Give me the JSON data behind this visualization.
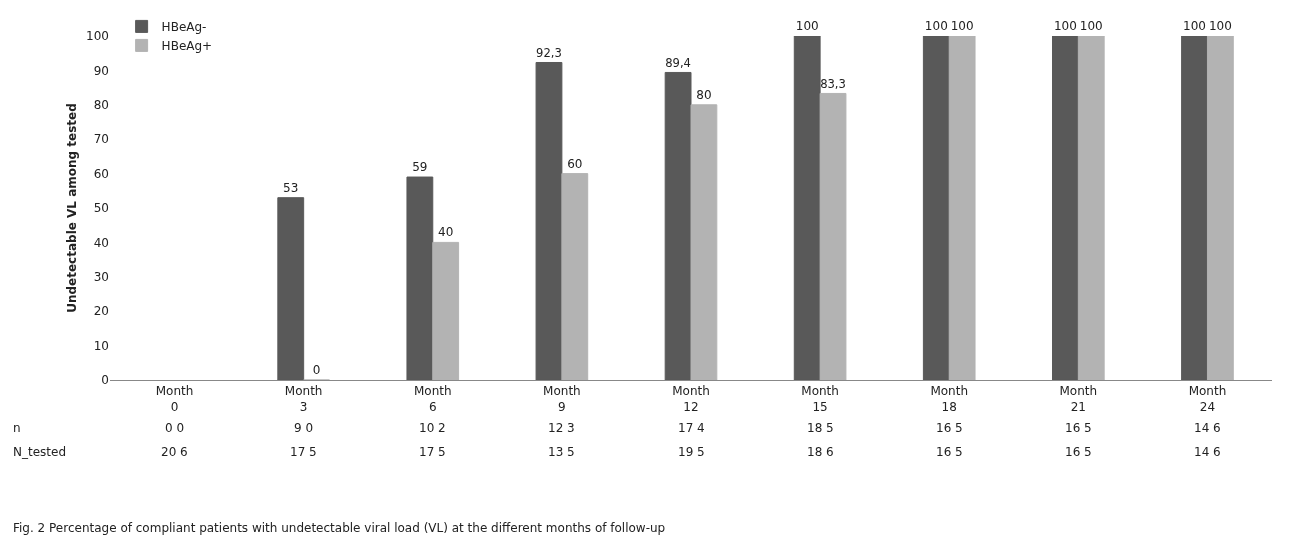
{
  "chart_data": {
    "type": "bar",
    "ylabel": "Undetectable VL among tested",
    "categories": [
      "Month\n0",
      "Month\n3",
      "Month\n6",
      "Month\n9",
      "Month\n12",
      "Month\n15",
      "Month\n18",
      "Month\n21",
      "Month\n24"
    ],
    "series": [
      {
        "name": "HBeAg-",
        "color": "#595959",
        "values": [
          null,
          53,
          59,
          92.3,
          89.4,
          100,
          100,
          100,
          100
        ],
        "value_labels": [
          null,
          "53",
          "59",
          "92,3",
          "89,4",
          "100",
          "100",
          "100",
          "100"
        ]
      },
      {
        "name": "HBeAg+",
        "color": "#b3b3b3",
        "values": [
          null,
          0,
          40,
          60,
          80,
          83.3,
          100,
          100,
          100
        ],
        "value_labels": [
          null,
          "0",
          "40",
          "60",
          "80",
          "83,3",
          "100",
          "100",
          "100"
        ]
      }
    ],
    "ylim": [
      0,
      100
    ],
    "yticks": [
      0,
      10,
      20,
      30,
      40,
      50,
      60,
      70,
      80,
      90,
      100
    ],
    "grid": false,
    "legend": "top left",
    "annotations": [
      "n",
      "0 0",
      "9 0",
      "10 2",
      "12 3",
      "17 4",
      "18 5",
      "16 5",
      "16 5",
      "14 6",
      "N_tested",
      "20 6",
      "17 5",
      "17 5",
      "13 5",
      "19 5",
      "18 6",
      "16 5",
      "16 5",
      "14 6",
      "Fig. 2 Percentage of compliant patients with undetectable viral load (VL) at the different months of follow-up"
    ]
  }
}
